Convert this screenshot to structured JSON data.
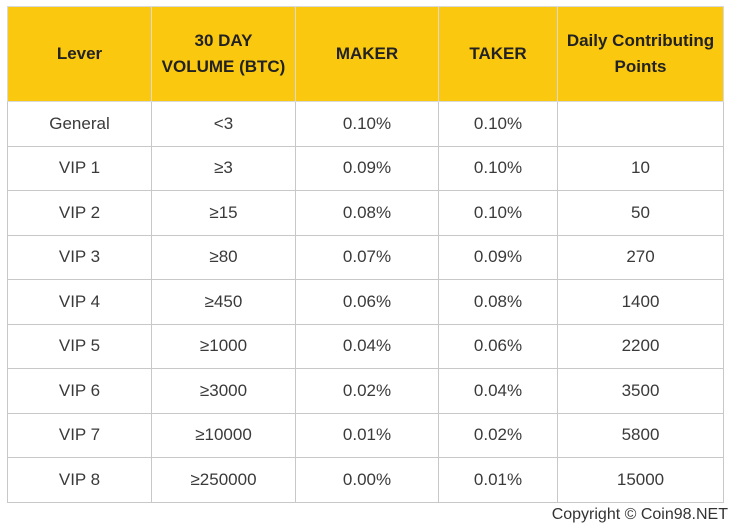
{
  "table": {
    "headers": [
      "Lever",
      "30 DAY VOLUME (BTC)",
      "MAKER",
      "TAKER",
      "Daily Contributing Points"
    ],
    "rows": [
      [
        "General",
        "<3",
        "0.10%",
        "0.10%",
        ""
      ],
      [
        "VIP 1",
        "≥3",
        "0.09%",
        "0.10%",
        "10"
      ],
      [
        "VIP 2",
        "≥15",
        "0.08%",
        "0.10%",
        "50"
      ],
      [
        "VIP 3",
        "≥80",
        "0.07%",
        "0.09%",
        "270"
      ],
      [
        "VIP 4",
        "≥450",
        "0.06%",
        "0.08%",
        "1400"
      ],
      [
        "VIP 5",
        "≥1000",
        "0.04%",
        "0.06%",
        "2200"
      ],
      [
        "VIP 6",
        "≥3000",
        "0.02%",
        "0.04%",
        "3500"
      ],
      [
        "VIP 7",
        "≥10000",
        "0.01%",
        "0.02%",
        "5800"
      ],
      [
        "VIP 8",
        "≥250000",
        "0.00%",
        "0.01%",
        "15000"
      ]
    ]
  },
  "footer": {
    "copyright": "Copyright © Coin98.NET"
  },
  "colors": {
    "header_bg": "#fbc810",
    "border": "#c8c8c8",
    "text": "#3a3a3a"
  }
}
